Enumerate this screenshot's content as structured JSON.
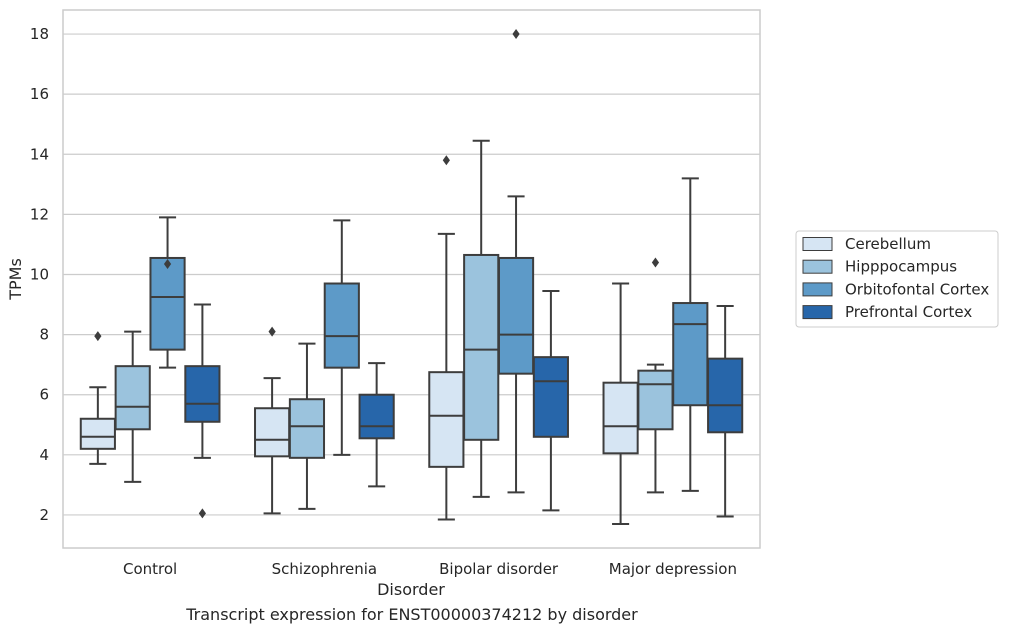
{
  "chart_data": {
    "type": "box",
    "title": "",
    "xlabel": "Disorder",
    "ylabel": "TPMs",
    "ylim": [
      0.9,
      18.8
    ],
    "yticks": [
      2,
      4,
      6,
      8,
      10,
      12,
      14,
      16,
      18
    ],
    "grid": "horizontal",
    "legend_position": "right",
    "categories": [
      "Control",
      "Schizophrenia",
      "Bipolar disorder",
      "Major depression"
    ],
    "series": [
      {
        "name": "Cerebellum",
        "color": "#d6e5f3",
        "boxes": [
          {
            "whisker_low": 3.7,
            "q1": 4.2,
            "median": 4.6,
            "q3": 5.2,
            "whisker_high": 6.25,
            "outliers": [
              7.95
            ]
          },
          {
            "whisker_low": 2.05,
            "q1": 3.95,
            "median": 4.5,
            "q3": 5.55,
            "whisker_high": 6.55,
            "outliers": [
              8.1
            ]
          },
          {
            "whisker_low": 1.85,
            "q1": 3.6,
            "median": 5.3,
            "q3": 6.75,
            "whisker_high": 11.35,
            "outliers": [
              13.8
            ]
          },
          {
            "whisker_low": 1.7,
            "q1": 4.05,
            "median": 4.95,
            "q3": 6.4,
            "whisker_high": 9.7,
            "outliers": []
          }
        ]
      },
      {
        "name": "Hipppocampus",
        "color": "#9bc3dd",
        "boxes": [
          {
            "whisker_low": 3.1,
            "q1": 4.85,
            "median": 5.6,
            "q3": 6.95,
            "whisker_high": 8.1,
            "outliers": []
          },
          {
            "whisker_low": 2.2,
            "q1": 3.9,
            "median": 4.95,
            "q3": 5.85,
            "whisker_high": 7.7,
            "outliers": []
          },
          {
            "whisker_low": 2.6,
            "q1": 4.5,
            "median": 7.5,
            "q3": 10.65,
            "whisker_high": 14.45,
            "outliers": []
          },
          {
            "whisker_low": 2.75,
            "q1": 4.85,
            "median": 6.35,
            "q3": 6.8,
            "whisker_high": 7.0,
            "outliers": [
              10.4
            ]
          }
        ]
      },
      {
        "name": "Orbitofontal Cortex",
        "color": "#5d9ac8",
        "boxes": [
          {
            "whisker_low": 6.9,
            "q1": 7.5,
            "median": 9.25,
            "q3": 10.55,
            "whisker_high": 11.9,
            "outliers": [
              10.35
            ]
          },
          {
            "whisker_low": 4.0,
            "q1": 6.9,
            "median": 7.95,
            "q3": 9.7,
            "whisker_high": 11.8,
            "outliers": []
          },
          {
            "whisker_low": 2.75,
            "q1": 6.7,
            "median": 8.0,
            "q3": 10.55,
            "whisker_high": 12.6,
            "outliers": [
              18.0
            ]
          },
          {
            "whisker_low": 2.8,
            "q1": 5.65,
            "median": 8.35,
            "q3": 9.05,
            "whisker_high": 13.2,
            "outliers": []
          }
        ]
      },
      {
        "name": "Prefrontal Cortex",
        "color": "#2766aa",
        "boxes": [
          {
            "whisker_low": 3.9,
            "q1": 5.1,
            "median": 5.7,
            "q3": 6.95,
            "whisker_high": 9.0,
            "outliers": [
              2.05
            ]
          },
          {
            "whisker_low": 2.95,
            "q1": 4.55,
            "median": 4.95,
            "q3": 6.0,
            "whisker_high": 7.05,
            "outliers": []
          },
          {
            "whisker_low": 2.15,
            "q1": 4.6,
            "median": 6.45,
            "q3": 7.25,
            "whisker_high": 9.45,
            "outliers": []
          },
          {
            "whisker_low": 1.95,
            "q1": 4.75,
            "median": 5.65,
            "q3": 7.2,
            "whisker_high": 8.95,
            "outliers": []
          }
        ]
      }
    ]
  },
  "caption": "Transcript expression for ENST00000374212 by disorder",
  "colors": {
    "grid": "#cccccc",
    "frame": "#cccccc",
    "box_edge": "#3d3d3d",
    "text": "#262626"
  }
}
